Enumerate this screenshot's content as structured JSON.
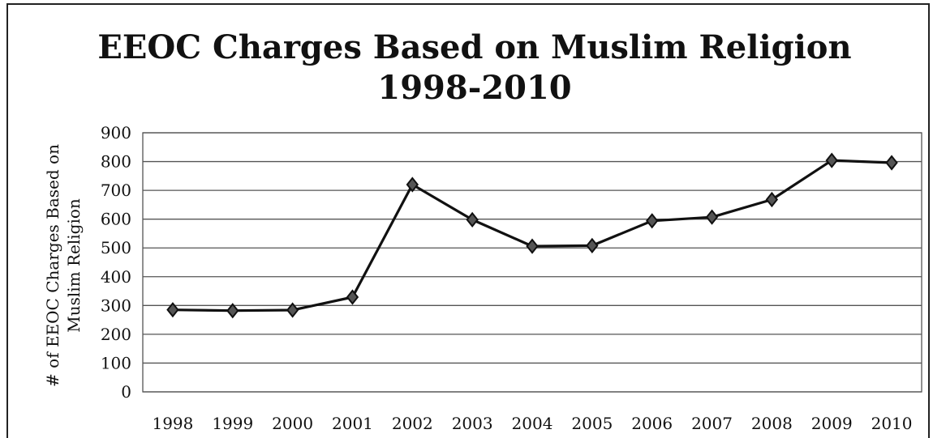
{
  "chart_data": {
    "type": "line",
    "title_line1": "EEOC Charges Based on Muslim Religion",
    "title_line2": "1998-2010",
    "ylabel_line1": "# of EEOC Charges Based on",
    "ylabel_line2": "Muslim Religion",
    "xlabel": "",
    "categories": [
      "1998",
      "1999",
      "2000",
      "2001",
      "2002",
      "2003",
      "2004",
      "2005",
      "2006",
      "2007",
      "2008",
      "2009",
      "2010"
    ],
    "series": [
      {
        "values": [
          285,
          282,
          284,
          329,
          720,
          598,
          506,
          508,
          594,
          607,
          668,
          804,
          796
        ]
      }
    ],
    "ylim": [
      0,
      900
    ],
    "yticks": [
      0,
      100,
      200,
      300,
      400,
      500,
      600,
      700,
      800,
      900
    ],
    "grid": true,
    "legend": "none",
    "line_color": "#111111",
    "marker": "diamond"
  }
}
